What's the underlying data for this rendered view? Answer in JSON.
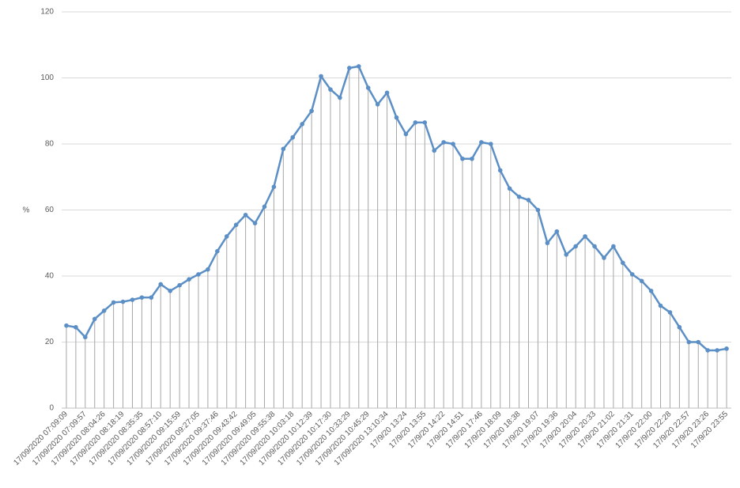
{
  "chart_data": {
    "type": "line",
    "y_label": "%",
    "categories": [
      "17/09/2020 07:09:09",
      null,
      "17/09/2020 07:09:57",
      null,
      "17/09/2020 08:04:26",
      null,
      "17/09/2020 08:18:19",
      null,
      "17/09/2020 08:35:35",
      null,
      "17/09/2020 08:57:10",
      null,
      "17/09/2020 09:15:59",
      null,
      "17/09/2020 09:27:05",
      null,
      "17/09/2020 09:37:46",
      null,
      "17/09/2020 09:43:42",
      null,
      "17/09/2020 09:49:05",
      null,
      "17/09/2020 09:55:38",
      null,
      "17/09/2020 10:03:18",
      null,
      "17/09/2020 10:12:39",
      null,
      "17/09/2020 10:17:30",
      null,
      "17/09/2020 10:33:29",
      null,
      "17/09/2020 10:45:29",
      null,
      "17/09/2020 13:10:34",
      null,
      "17/9/20 13:24",
      null,
      "17/9/20 13:55",
      null,
      "17/9/20 14:22",
      null,
      "17/9/20 14:51",
      null,
      "17/9/20 17:46",
      null,
      "17/9/20 18:09",
      null,
      "17/9/20 18:38",
      null,
      "17/9/20 19:07",
      null,
      "17/9/20 19:36",
      null,
      "17/9/20 20:04",
      null,
      "17/9/20 20:33",
      null,
      "17/9/20 21:02",
      null,
      "17/9/20 21:31",
      null,
      "17/9/20 22:00",
      null,
      "17/9/20 22:28",
      null,
      "17/9/20 22:57",
      null,
      "17/9/20 23:26",
      null,
      "17/9/20 23:55"
    ],
    "values": [
      25,
      24.5,
      21.5,
      27,
      29.5,
      32,
      32.2,
      32.8,
      33.5,
      33.5,
      37.5,
      35.5,
      37.2,
      39,
      40.5,
      42,
      47.5,
      52,
      55.5,
      58.5,
      56,
      61,
      67,
      78.5,
      82,
      86,
      90,
      100.5,
      96.5,
      94,
      103,
      103.5,
      97,
      92,
      95.5,
      88,
      83,
      86.5,
      86.5,
      78,
      80.5,
      80,
      75.5,
      75.5,
      80.5,
      80,
      72,
      66.5,
      64,
      63,
      60,
      50,
      53.5,
      46.5,
      49,
      52,
      49,
      45.5,
      49,
      44,
      40.5,
      38.5,
      35.5,
      31,
      29,
      24.5,
      20,
      20,
      17.5,
      17.5,
      18
    ],
    "color": "#5b8fc6",
    "ylim": [
      0,
      120
    ],
    "yticks": [
      0,
      20,
      40,
      60,
      80,
      100,
      120
    ],
    "grid": true,
    "drop_lines": true
  }
}
